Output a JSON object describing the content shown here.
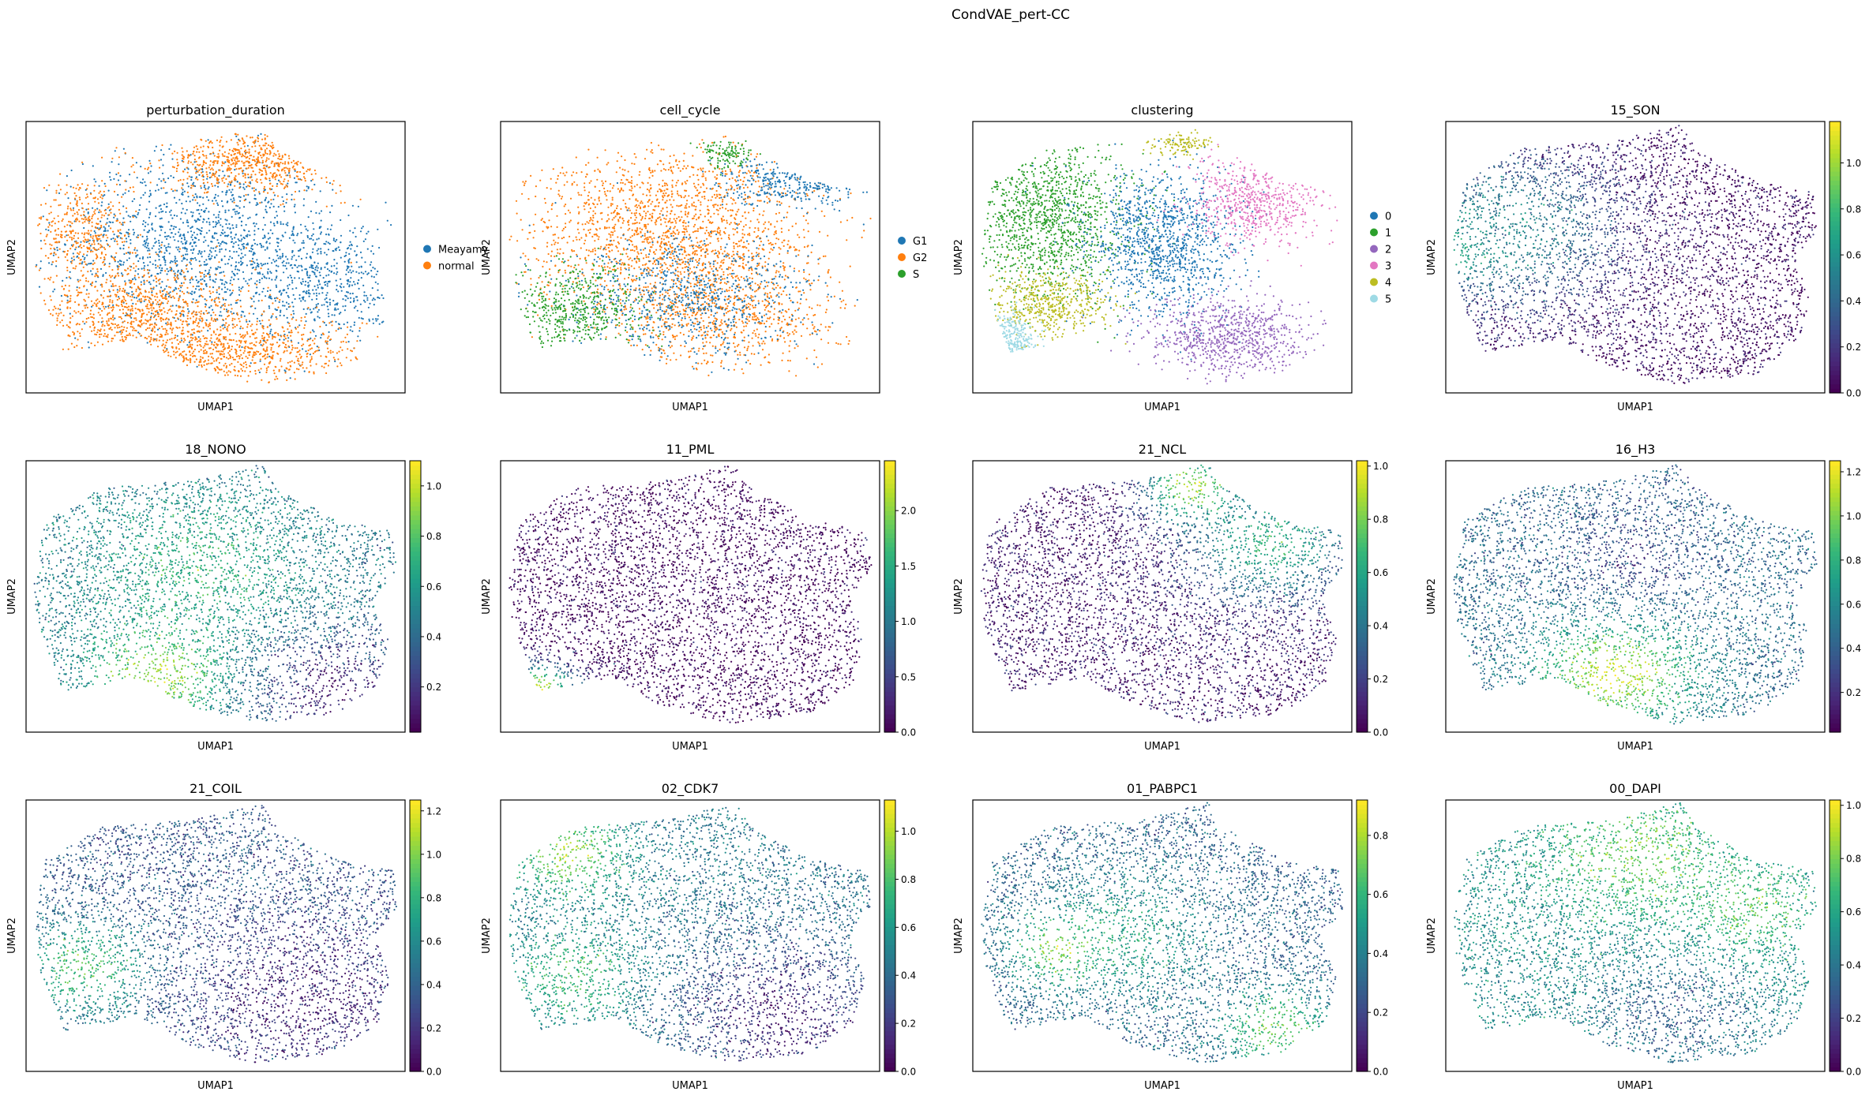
{
  "figure": {
    "suptitle": "CondVAE_pert-CC"
  },
  "chart_data": [
    {
      "type": "scatter",
      "title": "perturbation_duration",
      "xlabel": "UMAP1",
      "ylabel": "UMAP2",
      "color_mode": "categorical",
      "legend": {
        "position": "right",
        "entries": [
          {
            "label": "Meayamy",
            "color": "#1f77b4"
          },
          {
            "label": "normal",
            "color": "#ff7f0e"
          }
        ]
      },
      "regions": [
        {
          "cx": 0.45,
          "cy": 0.55,
          "rx": 0.33,
          "ry": 0.3,
          "color": "#1f77b4",
          "n": 1500
        },
        {
          "cx": 0.8,
          "cy": 0.4,
          "rx": 0.18,
          "ry": 0.22,
          "color": "#1f77b4",
          "n": 500
        },
        {
          "cx": 0.3,
          "cy": 0.3,
          "rx": 0.28,
          "ry": 0.15,
          "color": "#ff7f0e",
          "n": 800
        },
        {
          "cx": 0.55,
          "cy": 0.15,
          "rx": 0.3,
          "ry": 0.12,
          "color": "#ff7f0e",
          "n": 700
        },
        {
          "cx": 0.6,
          "cy": 0.85,
          "rx": 0.22,
          "ry": 0.1,
          "color": "#ff7f0e",
          "n": 600
        },
        {
          "cx": 0.15,
          "cy": 0.6,
          "rx": 0.12,
          "ry": 0.2,
          "color": "#ff7f0e",
          "n": 400
        }
      ]
    },
    {
      "type": "scatter",
      "title": "cell_cycle",
      "xlabel": "UMAP1",
      "ylabel": "UMAP2",
      "color_mode": "categorical",
      "legend": {
        "position": "right",
        "entries": [
          {
            "label": "G1",
            "color": "#1f77b4"
          },
          {
            "label": "G2",
            "color": "#ff7f0e"
          },
          {
            "label": "S",
            "color": "#2ca02c"
          }
        ]
      },
      "regions": [
        {
          "cx": 0.45,
          "cy": 0.6,
          "rx": 0.35,
          "ry": 0.28,
          "color": "#ff7f0e",
          "n": 1800
        },
        {
          "cx": 0.6,
          "cy": 0.28,
          "rx": 0.28,
          "ry": 0.18,
          "color": "#ff7f0e",
          "n": 700
        },
        {
          "cx": 0.5,
          "cy": 0.35,
          "rx": 0.3,
          "ry": 0.2,
          "color": "#1f77b4",
          "n": 800
        },
        {
          "cx": 0.78,
          "cy": 0.78,
          "rx": 0.18,
          "ry": 0.08,
          "color": "#1f77b4",
          "n": 300
        },
        {
          "cx": 0.2,
          "cy": 0.3,
          "rx": 0.16,
          "ry": 0.16,
          "color": "#2ca02c",
          "n": 500
        },
        {
          "cx": 0.6,
          "cy": 0.88,
          "rx": 0.06,
          "ry": 0.05,
          "color": "#2ca02c",
          "n": 120
        }
      ]
    },
    {
      "type": "scatter",
      "title": "clustering",
      "xlabel": "UMAP1",
      "ylabel": "UMAP2",
      "color_mode": "categorical",
      "legend": {
        "position": "right",
        "entries": [
          {
            "label": "0",
            "color": "#1f77b4"
          },
          {
            "label": "1",
            "color": "#2ca02c"
          },
          {
            "label": "2",
            "color": "#9467bd"
          },
          {
            "label": "3",
            "color": "#e377c2"
          },
          {
            "label": "4",
            "color": "#bcbd22"
          },
          {
            "label": "5",
            "color": "#9edae5"
          }
        ]
      },
      "regions": [
        {
          "cx": 0.2,
          "cy": 0.65,
          "rx": 0.2,
          "ry": 0.27,
          "color": "#2ca02c",
          "n": 1200
        },
        {
          "cx": 0.5,
          "cy": 0.55,
          "rx": 0.18,
          "ry": 0.25,
          "color": "#1f77b4",
          "n": 1200
        },
        {
          "cx": 0.68,
          "cy": 0.2,
          "rx": 0.2,
          "ry": 0.14,
          "color": "#9467bd",
          "n": 800
        },
        {
          "cx": 0.75,
          "cy": 0.7,
          "rx": 0.16,
          "ry": 0.14,
          "color": "#e377c2",
          "n": 600
        },
        {
          "cx": 0.2,
          "cy": 0.33,
          "rx": 0.15,
          "ry": 0.1,
          "color": "#bcbd22",
          "n": 500
        },
        {
          "cx": 0.55,
          "cy": 0.92,
          "rx": 0.07,
          "ry": 0.04,
          "color": "#bcbd22",
          "n": 120
        },
        {
          "cx": 0.1,
          "cy": 0.18,
          "rx": 0.06,
          "ry": 0.1,
          "color": "#9edae5",
          "n": 200
        }
      ]
    },
    {
      "type": "scatter",
      "title": "15_SON",
      "xlabel": "UMAP1",
      "ylabel": "UMAP2",
      "color_mode": "continuous",
      "colormap": "viridis",
      "colorbar": {
        "min": 0.0,
        "max": 1.18,
        "ticks": [
          "0.0",
          "0.2",
          "0.4",
          "0.6",
          "0.8",
          "1.0"
        ]
      },
      "background_value": 0.05,
      "hotspots": [
        {
          "cx": 0.05,
          "cy": 0.55,
          "r": 0.08,
          "value": 1.1
        },
        {
          "cx": 0.18,
          "cy": 0.6,
          "r": 0.2,
          "value": 0.55
        }
      ]
    },
    {
      "type": "scatter",
      "title": "18_NONO",
      "xlabel": "UMAP1",
      "ylabel": "UMAP2",
      "color_mode": "continuous",
      "colormap": "viridis",
      "colorbar": {
        "min": 0.02,
        "max": 1.1,
        "ticks": [
          "0.2",
          "0.4",
          "0.6",
          "0.8",
          "1.0"
        ]
      },
      "background_value": 0.45,
      "hotspots": [
        {
          "cx": 0.35,
          "cy": 0.22,
          "r": 0.12,
          "value": 1.0
        },
        {
          "cx": 0.45,
          "cy": 0.6,
          "r": 0.2,
          "value": 0.7
        },
        {
          "cx": 0.82,
          "cy": 0.15,
          "r": 0.15,
          "value": 0.12
        }
      ]
    },
    {
      "type": "scatter",
      "title": "11_PML",
      "xlabel": "UMAP1",
      "ylabel": "UMAP2",
      "color_mode": "continuous",
      "colormap": "viridis",
      "colorbar": {
        "min": 0.0,
        "max": 2.45,
        "ticks": [
          "0.0",
          "0.5",
          "1.0",
          "1.5",
          "2.0"
        ]
      },
      "background_value": 0.05,
      "hotspots": [
        {
          "cx": 0.1,
          "cy": 0.15,
          "r": 0.07,
          "value": 2.3
        }
      ]
    },
    {
      "type": "scatter",
      "title": "21_NCL",
      "xlabel": "UMAP1",
      "ylabel": "UMAP2",
      "color_mode": "continuous",
      "colormap": "viridis",
      "colorbar": {
        "min": 0.0,
        "max": 1.02,
        "ticks": [
          "0.0",
          "0.2",
          "0.4",
          "0.6",
          "0.8",
          "1.0"
        ]
      },
      "background_value": 0.08,
      "hotspots": [
        {
          "cx": 0.58,
          "cy": 0.9,
          "r": 0.08,
          "value": 0.95
        },
        {
          "cx": 0.78,
          "cy": 0.7,
          "r": 0.15,
          "value": 0.65
        }
      ]
    },
    {
      "type": "scatter",
      "title": "16_H3",
      "xlabel": "UMAP1",
      "ylabel": "UMAP2",
      "color_mode": "continuous",
      "colormap": "viridis",
      "colorbar": {
        "min": 0.02,
        "max": 1.25,
        "ticks": [
          "0.2",
          "0.4",
          "0.6",
          "0.8",
          "1.0",
          "1.2"
        ]
      },
      "background_value": 0.45,
      "hotspots": [
        {
          "cx": 0.45,
          "cy": 0.22,
          "r": 0.14,
          "value": 1.15
        },
        {
          "cx": 0.5,
          "cy": 0.65,
          "r": 0.15,
          "value": 0.3
        }
      ]
    },
    {
      "type": "scatter",
      "title": "21_COIL",
      "xlabel": "UMAP1",
      "ylabel": "UMAP2",
      "color_mode": "continuous",
      "colormap": "viridis",
      "colorbar": {
        "min": 0.0,
        "max": 1.25,
        "ticks": [
          "0.0",
          "0.2",
          "0.4",
          "0.6",
          "0.8",
          "1.0",
          "1.2"
        ]
      },
      "background_value": 0.35,
      "hotspots": [
        {
          "cx": 0.15,
          "cy": 0.38,
          "r": 0.12,
          "value": 0.9
        },
        {
          "cx": 0.75,
          "cy": 0.25,
          "r": 0.2,
          "value": 0.12
        }
      ]
    },
    {
      "type": "scatter",
      "title": "02_CDK7",
      "xlabel": "UMAP1",
      "ylabel": "UMAP2",
      "color_mode": "continuous",
      "colormap": "viridis",
      "colorbar": {
        "min": 0.0,
        "max": 1.13,
        "ticks": [
          "0.0",
          "0.2",
          "0.4",
          "0.6",
          "0.8",
          "1.0"
        ]
      },
      "background_value": 0.45,
      "hotspots": [
        {
          "cx": 0.18,
          "cy": 0.8,
          "r": 0.1,
          "value": 0.95
        },
        {
          "cx": 0.2,
          "cy": 0.35,
          "r": 0.12,
          "value": 0.8
        },
        {
          "cx": 0.75,
          "cy": 0.2,
          "r": 0.2,
          "value": 0.12
        }
      ]
    },
    {
      "type": "scatter",
      "title": "01_PABPC1",
      "xlabel": "UMAP1",
      "ylabel": "UMAP2",
      "color_mode": "continuous",
      "colormap": "viridis",
      "colorbar": {
        "min": 0.0,
        "max": 0.92,
        "ticks": [
          "0.0",
          "0.2",
          "0.4",
          "0.6",
          "0.8"
        ]
      },
      "background_value": 0.3,
      "hotspots": [
        {
          "cx": 0.4,
          "cy": 0.5,
          "r": 0.15,
          "value": 0.55
        },
        {
          "cx": 0.8,
          "cy": 0.15,
          "r": 0.1,
          "value": 0.7
        },
        {
          "cx": 0.22,
          "cy": 0.45,
          "r": 0.08,
          "value": 0.75
        }
      ]
    },
    {
      "type": "scatter",
      "title": "00_DAPI",
      "xlabel": "UMAP1",
      "ylabel": "UMAP2",
      "color_mode": "continuous",
      "colormap": "viridis",
      "colorbar": {
        "min": 0.0,
        "max": 1.02,
        "ticks": [
          "0.0",
          "0.2",
          "0.4",
          "0.6",
          "0.8",
          "1.0"
        ]
      },
      "background_value": 0.5,
      "hotspots": [
        {
          "cx": 0.5,
          "cy": 0.8,
          "r": 0.15,
          "value": 0.8
        },
        {
          "cx": 0.8,
          "cy": 0.6,
          "r": 0.12,
          "value": 0.75
        },
        {
          "cx": 0.6,
          "cy": 0.2,
          "r": 0.15,
          "value": 0.3
        }
      ]
    }
  ]
}
